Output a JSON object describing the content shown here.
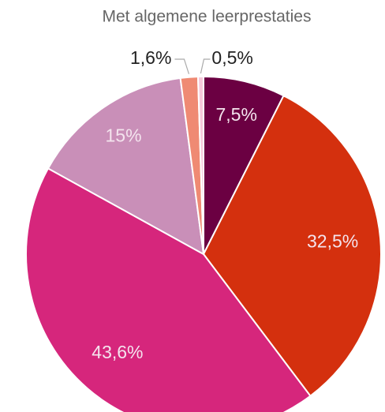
{
  "chart_data": {
    "type": "pie",
    "title": "Met algemene leerprestaties",
    "values": [
      7.5,
      32.5,
      43.6,
      15,
      1.6,
      0.5
    ],
    "value_labels": [
      "7,5%",
      "32,5%",
      "43,6%",
      "15%",
      "1,6%",
      "0,5%"
    ],
    "colors": [
      "#6b0042",
      "#d4300e",
      "#d6267c",
      "#c98fb8",
      "#ef8a73",
      "#f6c8da"
    ]
  }
}
